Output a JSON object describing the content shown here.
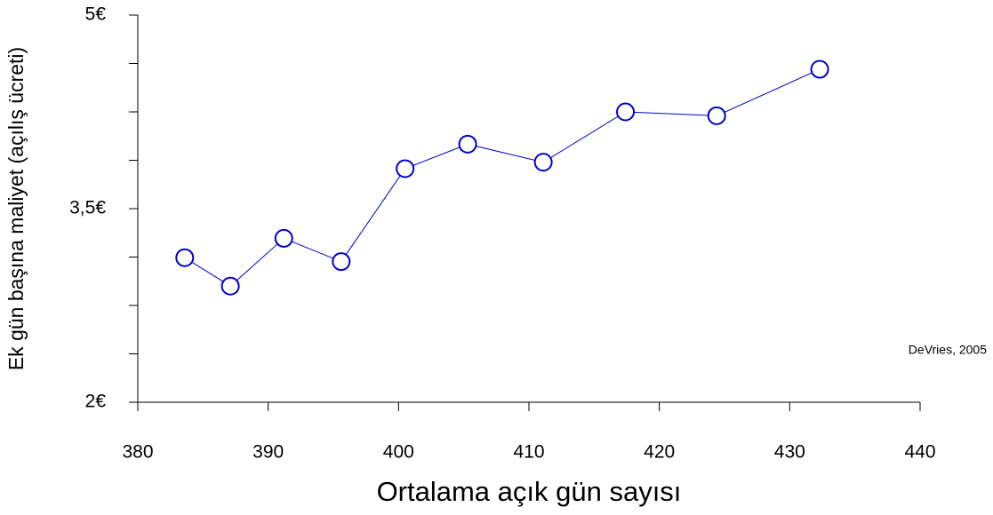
{
  "chart_data": {
    "type": "line",
    "x_label": "Ortalama açık gün sayısı",
    "y_label": "Ek gün başına maliyet (açılış ücreti)",
    "annotation": "DeVries, 2005",
    "series": [
      {
        "color": "#0000cc",
        "x": [
          383.6,
          387.1,
          391.2,
          395.6,
          400.5,
          405.3,
          411.1,
          417.4,
          424.4,
          432.3
        ],
        "values": [
          3.12,
          2.9,
          3.27,
          3.09,
          3.81,
          4.0,
          3.86,
          4.25,
          4.22,
          4.58
        ]
      }
    ],
    "xlim": [
      380,
      440
    ],
    "xticks": [
      380,
      390,
      400,
      410,
      420,
      430,
      440
    ],
    "ylim": [
      2,
      5
    ],
    "yticks": [
      {
        "value": 2,
        "label": "2€"
      },
      {
        "value": 3.5,
        "label": "3,5€"
      },
      {
        "value": 5,
        "label": "5€"
      }
    ],
    "yticks_minor": [
      2.375,
      2.75,
      3.125,
      3.875,
      4.25,
      4.625
    ],
    "grid": false
  }
}
